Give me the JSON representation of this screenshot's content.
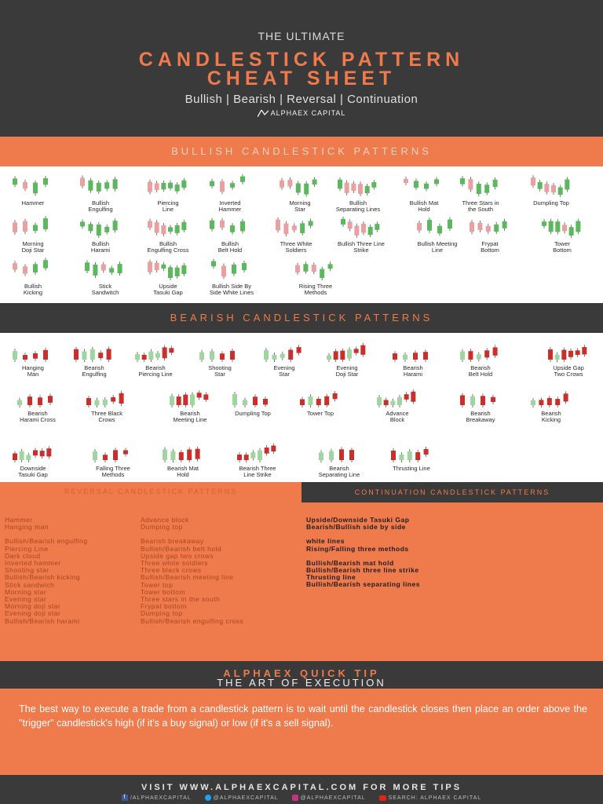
{
  "header": {
    "pretitle": "THE ULTIMATE",
    "title_line1": "CANDLESTICK PATTERN",
    "title_line2": "CHEAT SHEET",
    "subtitle": "Bullish | Bearish | Reversal | Continuation",
    "logo": "ALPHAEX CAPITAL"
  },
  "colors": {
    "accent": "#ef7a4c",
    "dark": "#3a3a3a",
    "bull": "#5cb85c",
    "bear": "#c9302c"
  },
  "bullish": {
    "heading": "BULLISH CANDLESTICK PATTERNS",
    "items": [
      {
        "line1": "",
        "line2": "Hammer"
      },
      {
        "line1": "Bullish",
        "line2": "Engulfing"
      },
      {
        "line1": "Piercing",
        "line2": "Line"
      },
      {
        "line1": "Inverted",
        "line2": "Hammer"
      },
      {
        "line1": "Morning",
        "line2": "Star"
      },
      {
        "line1": "Bullish",
        "line2": "Separating Lines"
      },
      {
        "line1": "Bullish Mat",
        "line2": "Hold"
      },
      {
        "line1": "Three Stars in",
        "line2": "the South"
      },
      {
        "line1": "",
        "line2": "Dumpling Top"
      },
      {
        "line1": "Morning",
        "line2": "Doji Star"
      },
      {
        "line1": "Bullish",
        "line2": "Harami"
      },
      {
        "line1": "Bullish",
        "line2": "Engulfing Cross"
      },
      {
        "line1": "Bullish",
        "line2": "Belt Hold"
      },
      {
        "line1": "Three White",
        "line2": "Soldiers"
      },
      {
        "line1": "Bullish Three Line",
        "line2": "Strike"
      },
      {
        "line1": "Bullish Meeting",
        "line2": "Line"
      },
      {
        "line1": "Frypat",
        "line2": "Bottom"
      },
      {
        "line1": "Tower",
        "line2": "Bottom"
      },
      {
        "line1": "Bullish",
        "line2": "Kicking"
      },
      {
        "line1": "Stick",
        "line2": "Sandwitch"
      },
      {
        "line1": "Upside",
        "line2": "Tasuki Gap"
      },
      {
        "line1": "Bullish Side By",
        "line2": "Side White Lines"
      },
      {
        "line1": "Rising Three",
        "line2": "Methods"
      }
    ]
  },
  "bearish": {
    "heading": "BEARISH CANDLESTICK PATTERNS",
    "items": [
      {
        "line1": "Hanging",
        "line2": "Man"
      },
      {
        "line1": "Bearish",
        "line2": "Engulfing"
      },
      {
        "line1": "Bearish",
        "line2": "Piercing Line"
      },
      {
        "line1": "Shooting",
        "line2": "Star"
      },
      {
        "line1": "Evening",
        "line2": "Star"
      },
      {
        "line1": "Evening",
        "line2": "Doji Star"
      },
      {
        "line1": "Bearish",
        "line2": "Harami"
      },
      {
        "line1": "Bearish",
        "line2": "Belt Hold"
      },
      {
        "line1": "Upside Gap",
        "line2": "Two Crows"
      },
      {
        "line1": "Bearish",
        "line2": "Harami Cross"
      },
      {
        "line1": "Three Black",
        "line2": "Crows"
      },
      {
        "line1": "Bearish",
        "line2": "Meeting Line"
      },
      {
        "line1": "",
        "line2": "Dumpling Top"
      },
      {
        "line1": "",
        "line2": "Tower Top"
      },
      {
        "line1": "Advance",
        "line2": "Block"
      },
      {
        "line1": "Bearish",
        "line2": "Breakaway"
      },
      {
        "line1": "Bearish",
        "line2": "Kicking"
      },
      {
        "line1": "Downside",
        "line2": "Tasuki Gap"
      },
      {
        "line1": "Falling Three",
        "line2": "Methods"
      },
      {
        "line1": "Bearish Mat",
        "line2": "Hold"
      },
      {
        "line1": "Bearish Three",
        "line2": "Line Strike"
      },
      {
        "line1": "Bearish",
        "line2": "Separating Line"
      },
      {
        "line1": "",
        "line2": "Thrusting Line"
      }
    ]
  },
  "reversal": {
    "heading": "REVERSAL CANDLESTICK PATTERNS",
    "col1": [
      "Hammer",
      "Hanging man",
      "Bullish/Bearish engulfing",
      "Piercing Line",
      "Dark cloud",
      "Inverted hammer",
      "Shooting star",
      "Bullish/Bearish kicking",
      "Stick sandwich",
      "Morning star",
      "Evening star",
      "Morning doji star",
      "Evening doji star",
      "Bullish/Bearish harami"
    ],
    "col2": [
      "Advance block",
      "Dumping top",
      "Bearish breakaway",
      "Bullish/Bearish belt hold",
      "Upside gap two crows",
      "Three white soldiers",
      "Three black crows",
      "Bullish/Bearish meeting line",
      "Tower top",
      "Tower bottom",
      "Three stars in the south",
      "Frypat bottom",
      "Dumping top",
      "Bullish/Bearish engulfing cross"
    ]
  },
  "continuation": {
    "heading": "CONTINUATION CANDLESTICK PATTERNS",
    "items": [
      "Upside/Downside Tasuki Gap",
      "Bearish/Bullish side by side",
      "white lines",
      "Rising/Falling three methods",
      "Bullish/Bearish mat hold",
      "Bullish/Bearish three line strike",
      "Thrusting line",
      "Bullish/Bearish separating lines"
    ]
  },
  "tip": {
    "title": "ALPHAEX QUICK TIP",
    "subtitle": "THE ART OF EXECUTION",
    "text": "The best way to execute a trade from a candlestick pattern is to wait until the candlestick closes then place an order above the \"trigger\" candlestick's high (if it's a buy signal) or low (if it's a sell signal)."
  },
  "footer": {
    "visit": "VISIT WWW.ALPHAEXCAPITAL.COM FOR MORE TIPS",
    "facebook": "/ALPHAEXCAPITAL",
    "twitter": "@ALPHAEXCAPITAL",
    "instagram": "@ALPHAEXCAPITAL",
    "youtube": "SEARCH: ALPHAEX CAPITAL"
  }
}
